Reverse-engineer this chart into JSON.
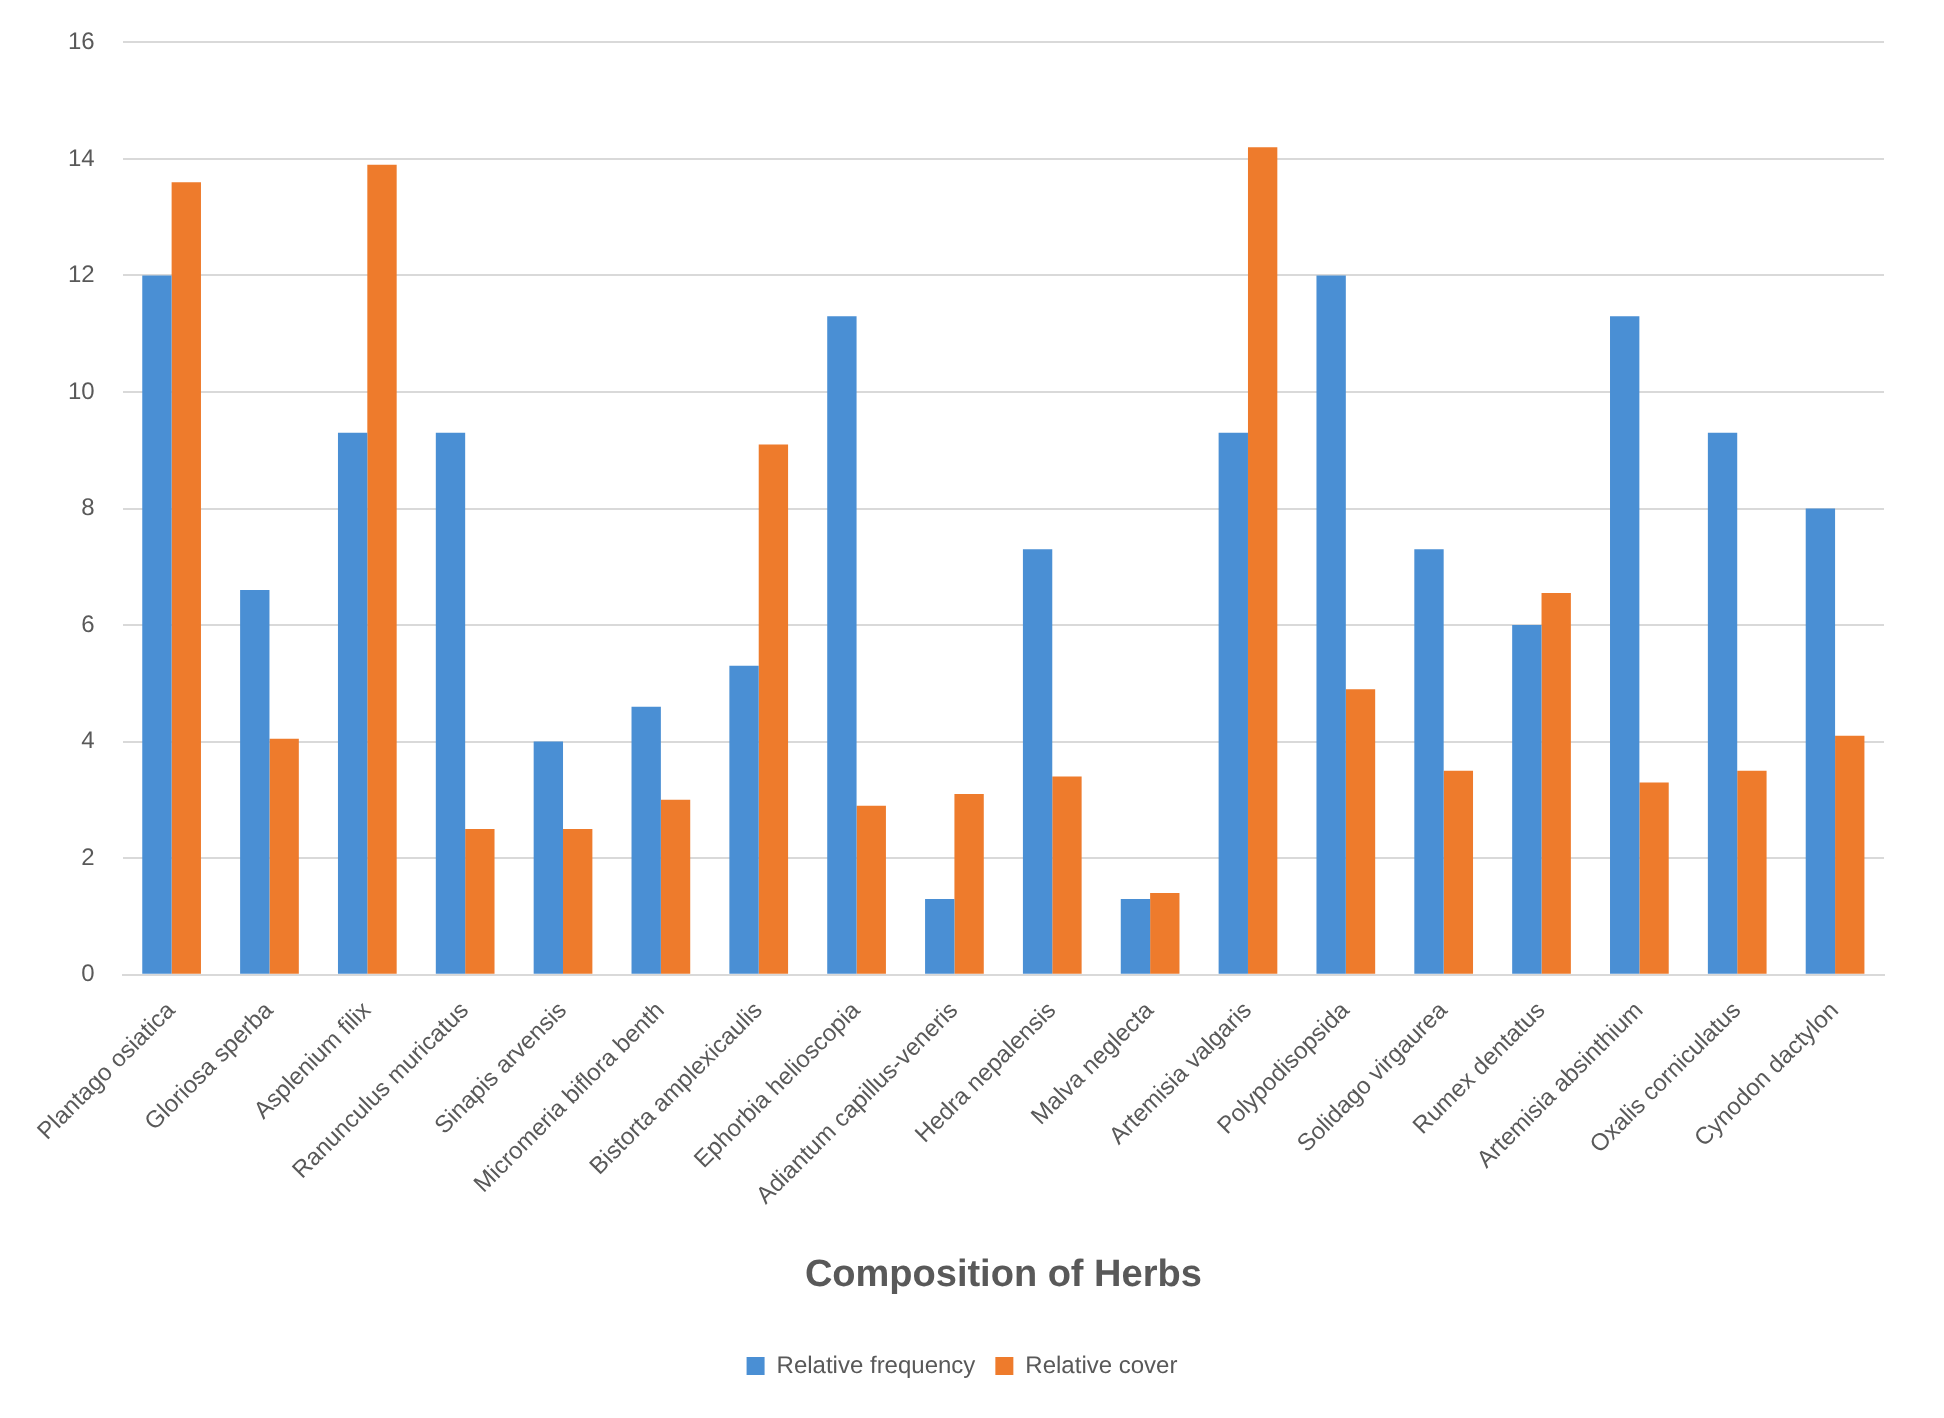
{
  "chart_data": {
    "type": "bar",
    "xlabel": "Composition of Herbs",
    "categories": [
      "Plantago osiatica",
      "Gloriosa sperba",
      "Asplenium filix",
      "Ranunculus muricatus",
      "Sinapis arvensis",
      "Micromeria biflora benth",
      "Bistorta amplexicaulis",
      "Ephorbia helioscopia",
      "Adiantum capillus-veneris",
      "Hedra nepalensis",
      "Malva neglecta",
      "Artemisia valgaris",
      "Polypodisopsida",
      "Solidago virgaurea",
      "Rumex dentatus",
      "Artemisia absinthium",
      "Oxalis corniculatus",
      "Cynodon dactylon"
    ],
    "series": [
      {
        "name": "Relative frequency",
        "color": "#4a8fd4",
        "values": [
          12,
          6.6,
          9.3,
          9.3,
          4,
          4.6,
          5.3,
          11.3,
          1.3,
          7.3,
          1.3,
          9.3,
          12,
          7.3,
          6,
          11.3,
          9.3,
          8
        ]
      },
      {
        "name": "Relative cover",
        "color": "#ee7b2c",
        "values": [
          13.6,
          4.05,
          13.9,
          2.5,
          2.5,
          3,
          9.1,
          2.9,
          3.1,
          3.4,
          1.4,
          14.2,
          4.9,
          3.5,
          6.55,
          3.3,
          3.5,
          4.1
        ]
      }
    ],
    "ylim": [
      0,
      16
    ],
    "yticks": [
      0,
      2,
      4,
      6,
      8,
      10,
      12,
      14,
      16
    ],
    "grid": "y",
    "legend": "bottom"
  }
}
